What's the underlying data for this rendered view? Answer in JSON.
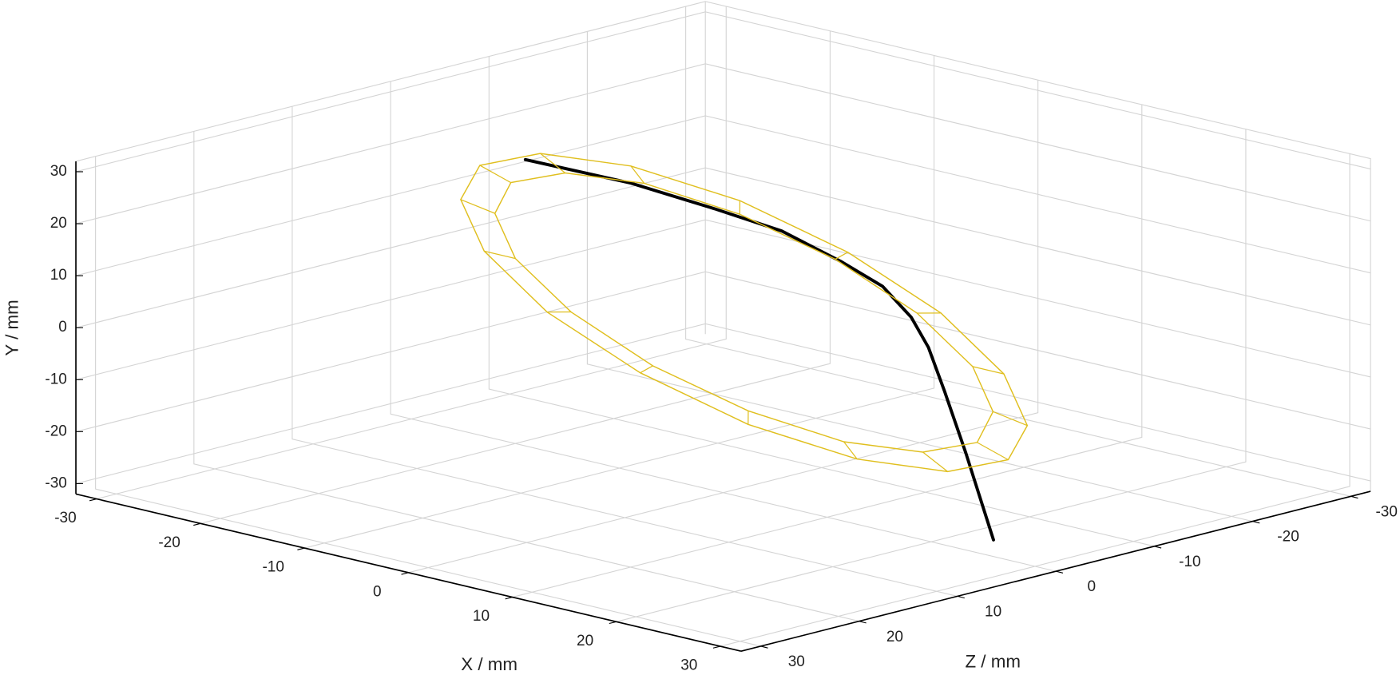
{
  "chart_data": {
    "type": "line3d",
    "xlabel": "X / mm",
    "ylabel": "Y / mm",
    "zlabel": "Z / mm",
    "xlim": [
      -32,
      32
    ],
    "ylim": [
      -32,
      32
    ],
    "zlim": [
      -32,
      32
    ],
    "xticks": [
      -30,
      -20,
      -10,
      0,
      10,
      20,
      30
    ],
    "yticks": [
      -30,
      -20,
      -10,
      0,
      10,
      20,
      30
    ],
    "zticks": [
      -30,
      -20,
      -10,
      0,
      10,
      20,
      30
    ],
    "grid": true,
    "series": [
      {
        "color": "#000000",
        "x": [
          -28.5,
          -17.4,
          -8.4,
          -1.0,
          5.6,
          10.6,
          14.3,
          16.9,
          19.4,
          22.4,
          26.0
        ],
        "y": [
          13.8,
          15.0,
          14.8,
          14.5,
          12.3,
          10.3,
          6.6,
          2.5,
          -4.3,
          -14.3,
          -28.8
        ],
        "z": [
          -10,
          -9,
          -8,
          -7,
          -6,
          -5,
          -4,
          -3,
          -2,
          -1,
          0
        ]
      },
      {
        "color": "#e0bf1f",
        "outer": {
          "x": [
            27,
            21.7,
            13.4,
            3.4,
            -6.9,
            -15.8,
            -22.0,
            -24.5,
            -23,
            -17.7,
            -9.4,
            0.6,
            10.9,
            19.8,
            26.0,
            28.5
          ],
          "y": [
            3.6,
            13.2,
            21.3,
            26.7,
            28.6,
            26.7,
            21.3,
            13.2,
            3.6,
            -6.0,
            -14.1,
            -19.5,
            -21.4,
            -19.5,
            -14.1,
            -6.0
          ],
          "z": [
            0,
            0.8,
            1.5,
            1.9,
            2.1,
            1.9,
            1.5,
            0.8,
            0,
            -0.8,
            -1.5,
            -1.9,
            -2.1,
            -1.9,
            -1.5,
            -0.8
          ]
        },
        "inner": {
          "x": [
            24,
            19.3,
            12.0,
            3.2,
            -5.9,
            -13.6,
            -19.2,
            -21.3,
            -20,
            -15.3,
            -8.0,
            0.8,
            9.9,
            17.6,
            23.2,
            25.3
          ],
          "y": [
            3.6,
            12.0,
            19.2,
            23.9,
            25.6,
            23.9,
            19.2,
            12.0,
            3.6,
            -4.8,
            -12.0,
            -16.7,
            -18.4,
            -16.7,
            -12.0,
            -4.8
          ],
          "z": [
            0,
            0.7,
            1.3,
            1.7,
            1.8,
            1.7,
            1.3,
            0.7,
            0,
            -0.7,
            -1.3,
            -1.7,
            -1.8,
            -1.7,
            -1.3,
            -0.7
          ]
        }
      }
    ]
  }
}
